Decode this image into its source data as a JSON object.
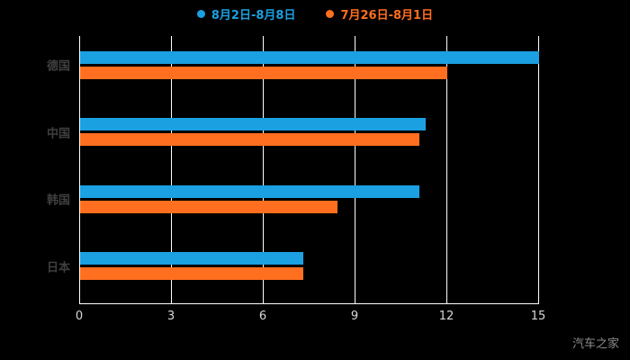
{
  "chart_data": {
    "type": "bar",
    "orientation": "horizontal",
    "title": "",
    "categories": [
      "德国",
      "中国",
      "韩国",
      "日本"
    ],
    "series": [
      {
        "name": "8月2日-8月8日",
        "color": "#1ba0e1",
        "values": [
          15,
          11.3,
          11.1,
          7.3
        ]
      },
      {
        "name": "7月26日-8月1日",
        "color": "#ff6f1f",
        "values": [
          12,
          11.1,
          8.4,
          7.3
        ]
      }
    ],
    "xlim": [
      0,
      15
    ],
    "xticks": [
      "0",
      "3",
      "6",
      "9",
      "12",
      "15"
    ],
    "grid": true,
    "legend_position": "top"
  },
  "watermark": "汽车之家",
  "colors": {
    "background": "#000000",
    "grid": "#ffffff",
    "tick_label": "#d9d9d9",
    "category_label": "#3f3f3f",
    "watermark": "#8c8c8c"
  }
}
